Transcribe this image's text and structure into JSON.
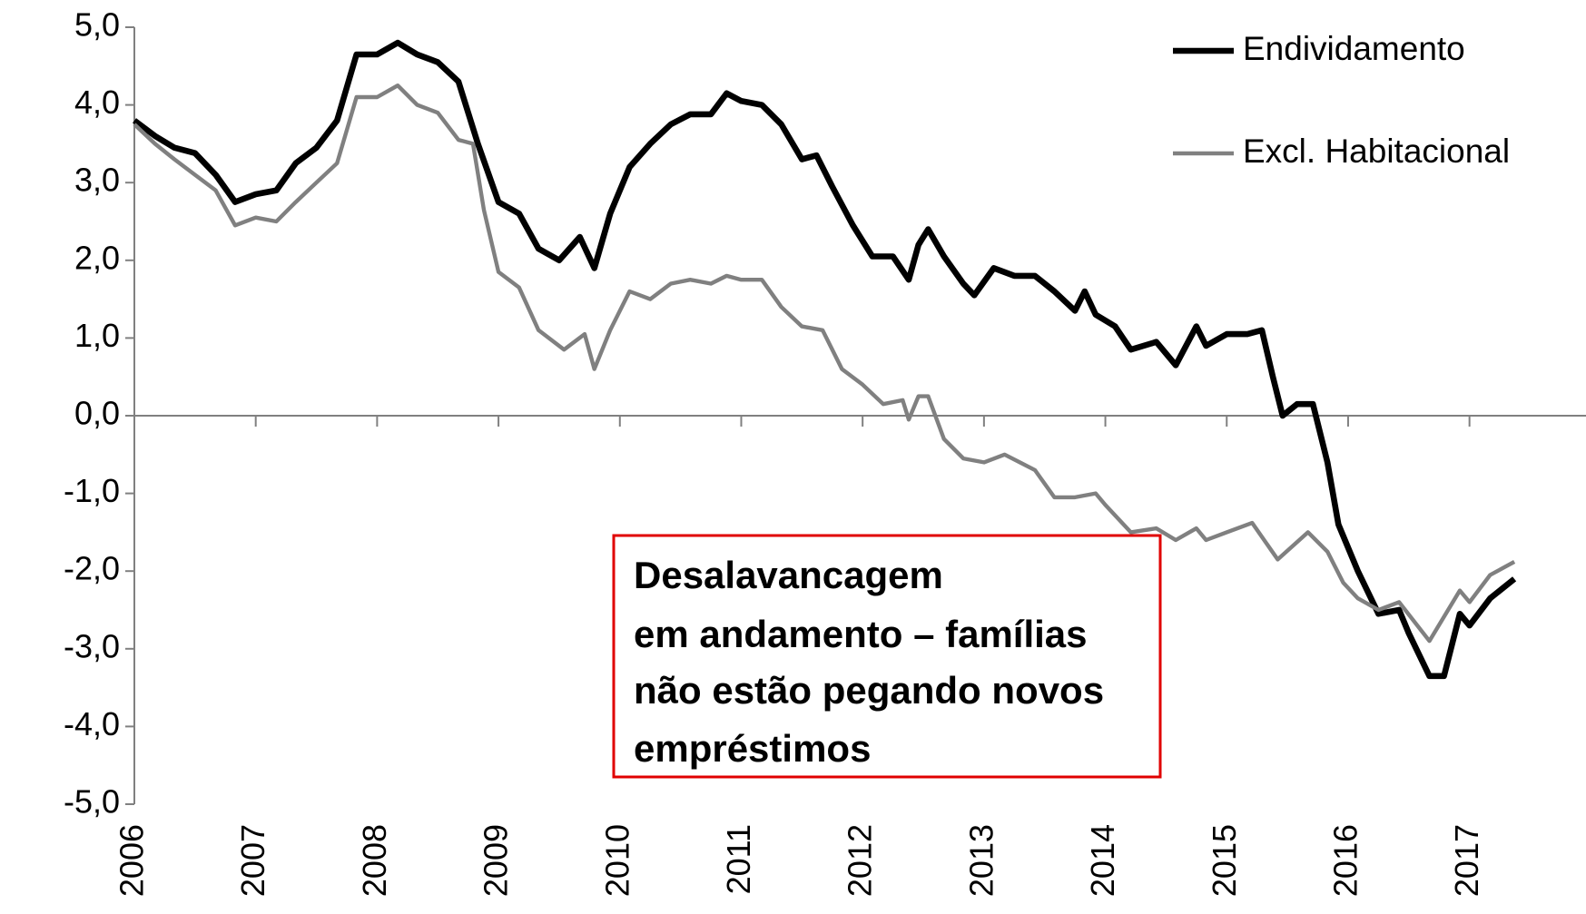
{
  "chart_data": {
    "type": "line",
    "xlim": [
      2006,
      2017.96
    ],
    "xticks": [
      2006,
      2007,
      2008,
      2009,
      2010,
      2011,
      2012,
      2013,
      2014,
      2015,
      2016,
      2017
    ],
    "ylim": [
      -5,
      5
    ],
    "yticks": [
      {
        "value": -5,
        "label": "-5,0"
      },
      {
        "value": -4,
        "label": "-4,0"
      },
      {
        "value": -3,
        "label": "-3,0"
      },
      {
        "value": -2,
        "label": "-2,0"
      },
      {
        "value": -1,
        "label": "-1,0"
      },
      {
        "value": 0,
        "label": "0,0"
      },
      {
        "value": 1,
        "label": "1,0"
      },
      {
        "value": 2,
        "label": "2,0"
      },
      {
        "value": 3,
        "label": "3,0"
      },
      {
        "value": 4,
        "label": "4,0"
      },
      {
        "value": 5,
        "label": "5,0"
      }
    ],
    "grid": false,
    "legend": "top-right",
    "annotation": [
      "Desalavancagem",
      "em andamento – famílias",
      "não estão pegando novos",
      "empréstimos"
    ],
    "series": [
      {
        "name": "Endividamento",
        "color": "#000000",
        "width": 6,
        "x": [
          2006.0,
          2006.17,
          2006.33,
          2006.5,
          2006.67,
          2006.83,
          2007.0,
          2007.17,
          2007.33,
          2007.5,
          2007.67,
          2007.83,
          2008.0,
          2008.17,
          2008.33,
          2008.5,
          2008.67,
          2008.83,
          2009.0,
          2009.17,
          2009.33,
          2009.5,
          2009.67,
          2009.79,
          2009.92,
          2010.08,
          2010.25,
          2010.42,
          2010.58,
          2010.75,
          2010.88,
          2011.0,
          2011.17,
          2011.33,
          2011.5,
          2011.62,
          2011.75,
          2011.92,
          2012.08,
          2012.25,
          2012.38,
          2012.46,
          2012.54,
          2012.67,
          2012.83,
          2012.92,
          2013.08,
          2013.25,
          2013.42,
          2013.58,
          2013.75,
          2013.83,
          2013.92,
          2014.08,
          2014.21,
          2014.42,
          2014.58,
          2014.75,
          2014.83,
          2015.0,
          2015.17,
          2015.29,
          2015.38,
          2015.46,
          2015.58,
          2015.71,
          2015.83,
          2015.92,
          2016.08,
          2016.25,
          2016.42,
          2016.5,
          2016.67,
          2016.79,
          2016.92,
          2017.0,
          2017.17,
          2017.37
        ],
        "values": [
          3.8,
          3.6,
          3.45,
          3.38,
          3.1,
          2.75,
          2.85,
          2.9,
          3.25,
          3.45,
          3.8,
          4.65,
          4.65,
          4.8,
          4.65,
          4.55,
          4.3,
          3.5,
          2.75,
          2.6,
          2.15,
          2.0,
          2.3,
          1.9,
          2.6,
          3.2,
          3.5,
          3.75,
          3.88,
          3.88,
          4.15,
          4.05,
          4.0,
          3.75,
          3.3,
          3.35,
          2.95,
          2.45,
          2.05,
          2.05,
          1.75,
          2.2,
          2.4,
          2.05,
          1.7,
          1.55,
          1.9,
          1.8,
          1.8,
          1.6,
          1.35,
          1.6,
          1.3,
          1.15,
          0.85,
          0.95,
          0.65,
          1.15,
          0.9,
          1.05,
          1.05,
          1.1,
          0.5,
          0.0,
          0.15,
          0.15,
          -0.6,
          -1.4,
          -2.0,
          -2.55,
          -2.5,
          -2.8,
          -3.35,
          -3.35,
          -2.55,
          -2.7,
          -2.35,
          -2.1
        ]
      },
      {
        "name": "Excl. Habitacional",
        "color": "#808080",
        "width": 4,
        "x": [
          2006.0,
          2006.17,
          2006.33,
          2006.5,
          2006.67,
          2006.83,
          2007.0,
          2007.17,
          2007.33,
          2007.5,
          2007.67,
          2007.83,
          2008.0,
          2008.17,
          2008.33,
          2008.5,
          2008.67,
          2008.79,
          2008.88,
          2009.0,
          2009.17,
          2009.33,
          2009.54,
          2009.71,
          2009.79,
          2009.92,
          2010.08,
          2010.25,
          2010.42,
          2010.58,
          2010.75,
          2010.88,
          2011.0,
          2011.17,
          2011.33,
          2011.5,
          2011.67,
          2011.83,
          2012.0,
          2012.17,
          2012.33,
          2012.38,
          2012.46,
          2012.54,
          2012.67,
          2012.83,
          2013.0,
          2013.17,
          2013.42,
          2013.58,
          2013.75,
          2013.92,
          2014.0,
          2014.21,
          2014.42,
          2014.58,
          2014.75,
          2014.83,
          2015.0,
          2015.21,
          2015.42,
          2015.67,
          2015.83,
          2015.96,
          2016.08,
          2016.25,
          2016.42,
          2016.67,
          2016.92,
          2017.0,
          2017.17,
          2017.37
        ],
        "values": [
          3.75,
          3.5,
          3.3,
          3.1,
          2.9,
          2.45,
          2.55,
          2.5,
          2.75,
          3.0,
          3.25,
          4.1,
          4.1,
          4.25,
          4.0,
          3.9,
          3.55,
          3.5,
          2.65,
          1.85,
          1.65,
          1.1,
          0.85,
          1.05,
          0.6,
          1.1,
          1.6,
          1.5,
          1.7,
          1.75,
          1.7,
          1.8,
          1.75,
          1.75,
          1.4,
          1.15,
          1.1,
          0.6,
          0.4,
          0.15,
          0.2,
          -0.05,
          0.25,
          0.25,
          -0.3,
          -0.55,
          -0.6,
          -0.5,
          -0.7,
          -1.05,
          -1.05,
          -1.0,
          -1.15,
          -1.5,
          -1.45,
          -1.6,
          -1.45,
          -1.6,
          -1.5,
          -1.38,
          -1.85,
          -1.5,
          -1.75,
          -2.15,
          -2.35,
          -2.5,
          -2.4,
          -2.9,
          -2.25,
          -2.4,
          -2.05,
          -1.88
        ]
      }
    ]
  }
}
